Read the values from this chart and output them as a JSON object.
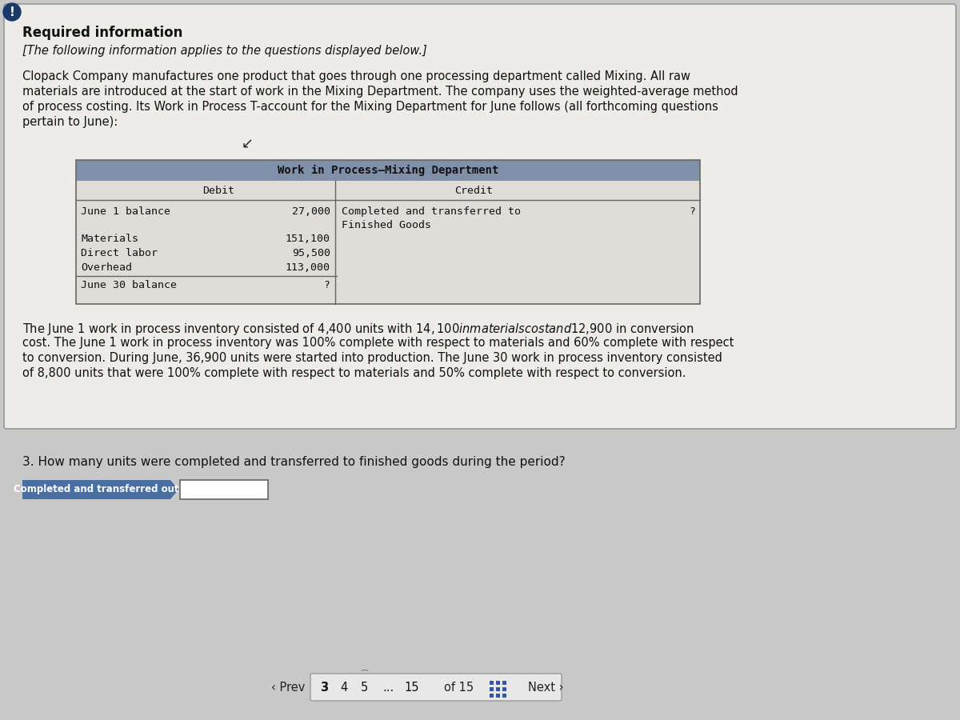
{
  "page_bg": "#c8c8c8",
  "card_bg": "#eeece8",
  "card_border": "#999999",
  "table_header_bg": "#8090a8",
  "table_body_bg": "#e0ddd8",
  "exclamation_bg": "#1a3a6b",
  "title_bold": "Required information",
  "subtitle_italic": "[The following information applies to the questions displayed below.]",
  "para1_lines": [
    "Clopack Company manufactures one product that goes through one processing department called Mixing. All raw",
    "materials are introduced at the start of work in the Mixing Department. The company uses the weighted-average method",
    "of process costing. Its Work in Process T-account for the Mixing Department for June follows (all forthcoming questions",
    "pertain to June):"
  ],
  "table_title": "Work in Process–Mixing Department",
  "col_debit": "Debit",
  "col_credit": "Credit",
  "row1_label": "June 1 balance",
  "row1_debit": "27,000",
  "row1_credit_label": "Completed and transferred to",
  "row1_credit_label2": "Finished Goods",
  "row1_credit_val": "?",
  "row2_label": "Materials",
  "row2_debit": "151,100",
  "row3_label": "Direct labor",
  "row3_debit": "95,500",
  "row4_label": "Overhead",
  "row4_debit": "113,000",
  "row5_label": "June 30 balance",
  "row5_debit": "?",
  "para2_lines": [
    "The June 1 work in process inventory consisted of 4,400 units with $14,100 in materials cost and $12,900 in conversion",
    "cost. The June 1 work in process inventory was 100% complete with respect to materials and 60% complete with respect",
    "to conversion. During June, 36,900 units were started into production. The June 30 work in process inventory consisted",
    "of 8,800 units that were 100% complete with respect to materials and 50% complete with respect to conversion."
  ],
  "question": "3. How many units were completed and transferred to finished goods during the period?",
  "answer_label": "Completed and transferred out",
  "answer_label_bg": "#4a6fa5",
  "answer_label_text": "#ffffff",
  "answer_box_bg": "#ffffff",
  "nav_box_bg": "#e8e8e8",
  "nav_box_border": "#aaaaaa",
  "font_mono": "DejaVu Sans Mono",
  "font_sans": "DejaVu Sans",
  "grid_color": "#3355aa"
}
